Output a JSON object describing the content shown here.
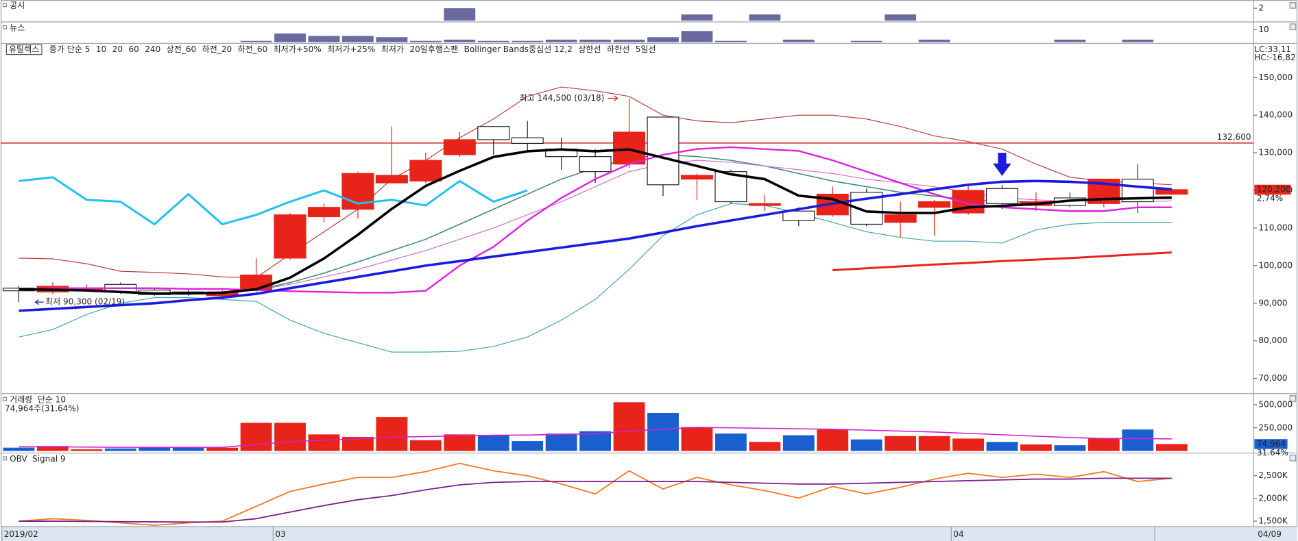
{
  "chart_data": [
    {
      "type": "bar",
      "title": "공시",
      "color": "#6a6aa0",
      "ylim": [
        0,
        2
      ],
      "yticks": [
        2
      ],
      "values": [
        0,
        0,
        0,
        0,
        0,
        0,
        0,
        0,
        0,
        0,
        0,
        0,
        0,
        2,
        0,
        0,
        0,
        0,
        0,
        0,
        1,
        0,
        1,
        0,
        0,
        0,
        1,
        0,
        0,
        0,
        0,
        0,
        0,
        0,
        0
      ]
    },
    {
      "type": "bar",
      "title": "뉴스",
      "color": "#6a6aa0",
      "ylim": [
        0,
        10
      ],
      "yticks": [
        10
      ],
      "values": [
        0,
        0,
        0,
        0,
        0,
        0,
        0,
        1,
        7,
        5,
        5,
        4,
        1,
        2,
        1,
        1,
        2,
        2,
        2,
        4,
        9,
        1,
        0,
        2,
        0,
        1,
        0,
        2,
        0,
        0,
        0,
        2,
        0,
        2,
        0
      ]
    },
    {
      "type": "candlestick",
      "stock": "유틸렉스",
      "categories": [
        "2019/02",
        null,
        null,
        null,
        null,
        null,
        null,
        null,
        "03",
        null,
        null,
        null,
        null,
        null,
        null,
        null,
        null,
        null,
        null,
        null,
        null,
        null,
        null,
        null,
        null,
        null,
        null,
        null,
        "04",
        null,
        null,
        null,
        null,
        null,
        "04/09"
      ],
      "open": [
        94000,
        93000,
        93500,
        95000,
        93500,
        93000,
        92000,
        93500,
        102000,
        113000,
        115000,
        122000,
        122500,
        129500,
        137000,
        134000,
        131000,
        129000,
        127000,
        139500,
        123000,
        125000,
        116000,
        114500,
        113500,
        119500,
        111500,
        115500,
        114000,
        120500,
        116000,
        118000,
        116500,
        123000,
        119000
      ],
      "high": [
        94500,
        95500,
        95000,
        95500,
        94000,
        93500,
        93500,
        102000,
        114000,
        116500,
        125000,
        137000,
        130000,
        135500,
        137000,
        138500,
        134000,
        131000,
        144500,
        139500,
        124500,
        125500,
        119000,
        115500,
        121000,
        120500,
        117000,
        117500,
        121500,
        121500,
        119500,
        119500,
        123000,
        127000,
        120500
      ],
      "low": [
        90300,
        92500,
        93000,
        92500,
        92000,
        92000,
        91000,
        93000,
        101500,
        111500,
        112500,
        122000,
        122000,
        129000,
        129500,
        130500,
        125500,
        122000,
        126000,
        118500,
        117500,
        116500,
        114500,
        110500,
        113000,
        110500,
        107500,
        108000,
        113500,
        115000,
        114500,
        115500,
        115500,
        114000,
        118800
      ],
      "close": [
        93300,
        94500,
        94000,
        93000,
        92300,
        92500,
        93000,
        97500,
        113500,
        115500,
        124500,
        124000,
        128000,
        133500,
        133500,
        132500,
        129000,
        125000,
        135500,
        121500,
        124000,
        117000,
        116500,
        112000,
        119000,
        111000,
        113500,
        117000,
        120000,
        116500,
        117000,
        116000,
        123000,
        117000,
        120200
      ],
      "up_color": "#e8231a",
      "down_color": "#ffffff",
      "ylim": [
        66300,
        159000
      ],
      "yticks": [
        {
          "value": 150000,
          "label": "150,000"
        },
        {
          "value": 140000,
          "label": "140,000"
        },
        {
          "value": 130000,
          "label": "130,000"
        },
        {
          "value": 120000,
          "label": "120,000"
        },
        {
          "value": 110000,
          "label": "110,000"
        },
        {
          "value": 100000,
          "label": "100,000"
        },
        {
          "value": 90000,
          "label": "90,000"
        },
        {
          "value": 80000,
          "label": "80,000"
        },
        {
          "value": 70000,
          "label": "70,000"
        }
      ],
      "legend": [
        {
          "name": "종가 단순 5",
          "color": "#000000"
        },
        {
          "name": "10",
          "color": "#1f9c9c"
        },
        {
          "name": "20",
          "color": "#1a1ae0"
        },
        {
          "name": "60",
          "color": "#a0302a"
        },
        {
          "name": "240",
          "color": "#808080"
        },
        {
          "name": "상전_60",
          "color": "#c04040"
        },
        {
          "name": "하전_20",
          "color": "#1a1a8a"
        },
        {
          "name": "하전_60",
          "color": "#b03020"
        },
        {
          "name": "최저가+50%",
          "color": "#e02020"
        },
        {
          "name": "최저가+25%",
          "color": "#30c0c0"
        },
        {
          "name": "최저가",
          "color": "#000000"
        },
        {
          "name": "20일후행스팬",
          "color": "#20b0e0"
        },
        {
          "name": "Bollinger Bands중심선 12,2",
          "color": "#c040c0"
        },
        {
          "name": "상한선",
          "color": "#c03030"
        },
        {
          "name": "하한선",
          "color": "#309090"
        },
        {
          "name": "5일선",
          "color": "#d020d0"
        }
      ],
      "lines": [
        {
          "color": "#b5403a",
          "width": 1,
          "values": [
            102000,
            101800,
            100500,
            98500,
            98200,
            97800,
            97000,
            96800,
            103000,
            109000,
            115000,
            123000,
            128000,
            134000,
            139000,
            145000,
            147500,
            146500,
            145000,
            140000,
            138500,
            138000,
            139000,
            140000,
            140000,
            139000,
            137000,
            134500,
            133000,
            131000,
            127000,
            123500,
            122500,
            122000,
            121500
          ]
        },
        {
          "color": "#3aa6b0",
          "width": 1,
          "values": [
            81000,
            83000,
            87000,
            90000,
            91500,
            91500,
            91000,
            90500,
            85500,
            82000,
            79500,
            77000,
            77000,
            77200,
            78500,
            81000,
            85500,
            91000,
            99000,
            108000,
            113500,
            116500,
            116000,
            114000,
            111500,
            109000,
            107500,
            106500,
            106500,
            106000,
            109500,
            111000,
            111500,
            111500,
            111500
          ]
        },
        {
          "color": "#3c8c6e",
          "width": 1.3,
          "values": [
            null,
            null,
            null,
            null,
            null,
            null,
            null,
            93500,
            95500,
            98000,
            101000,
            104000,
            107000,
            111000,
            115000,
            119000,
            123000,
            126000,
            128500,
            129500,
            129000,
            128000,
            126500,
            124500,
            122500,
            121000,
            119500,
            118500,
            117500,
            117000,
            116800,
            117200,
            117500,
            117800,
            117800
          ]
        },
        {
          "color": "#d070d0",
          "width": 1,
          "values": [
            null,
            null,
            null,
            null,
            null,
            null,
            null,
            93500,
            95000,
            97000,
            99000,
            101500,
            104000,
            107000,
            110000,
            113500,
            117000,
            121000,
            125000,
            127000,
            128000,
            127500,
            126500,
            125500,
            124500,
            123000,
            122000,
            121000,
            119500,
            118000,
            117500,
            117000,
            116800,
            117000,
            117200
          ]
        },
        {
          "color": "#e020e0",
          "width": 2,
          "values": [
            93500,
            94000,
            94000,
            94000,
            94000,
            93800,
            93800,
            93500,
            93200,
            93000,
            92800,
            92800,
            93300,
            100000,
            105000,
            112000,
            118000,
            123000,
            127000,
            129500,
            131000,
            131500,
            131000,
            130500,
            128000,
            125000,
            122000,
            119000,
            116500,
            115500,
            115000,
            114500,
            114500,
            115500,
            115500
          ]
        },
        {
          "color": "#20c0f0",
          "width": 2.5,
          "values": [
            122500,
            123500,
            117500,
            117000,
            111000,
            119000,
            111000,
            113500,
            117000,
            120000,
            116500,
            117500,
            116000,
            122500,
            117000,
            120000,
            null,
            null,
            null,
            null,
            null,
            null,
            null,
            null,
            null,
            null,
            null,
            null,
            null,
            null,
            null,
            null,
            null,
            null,
            null
          ]
        },
        {
          "color": "#1a1ae0",
          "width": 3,
          "values": [
            88000,
            88500,
            89000,
            89500,
            90000,
            90800,
            91500,
            92500,
            94000,
            95500,
            97000,
            98500,
            100000,
            101200,
            102400,
            103600,
            104800,
            106000,
            107200,
            108800,
            110500,
            112000,
            113500,
            115000,
            116500,
            117800,
            119000,
            120300,
            121500,
            122300,
            122500,
            122300,
            121800,
            121000,
            120300
          ]
        },
        {
          "color": "#000000",
          "width": 3,
          "values": [
            93700,
            93600,
            93400,
            93000,
            92600,
            92600,
            92800,
            93700,
            96800,
            101900,
            108200,
            115100,
            121200,
            125200,
            128900,
            130400,
            130900,
            130400,
            130900,
            128700,
            126500,
            124300,
            123000,
            118600,
            117700,
            114400,
            114000,
            114000,
            115500,
            115900,
            116400,
            117300,
            117700,
            117900,
            118100
          ]
        },
        {
          "color": "#e8231a",
          "width": 2.5,
          "values": [
            null,
            null,
            null,
            null,
            null,
            null,
            null,
            null,
            null,
            null,
            null,
            null,
            null,
            null,
            null,
            null,
            null,
            null,
            null,
            null,
            null,
            null,
            null,
            null,
            98800,
            99300,
            99800,
            100300,
            100700,
            101200,
            101600,
            102000,
            102500,
            103000,
            103500
          ]
        }
      ],
      "hline": {
        "value": 132600,
        "label": "132,600",
        "color": "#d0202a"
      },
      "high_label": "최고 144,500 (03/18)",
      "low_label": "최저 90,300 (02/19)",
      "indicators": [
        {
          "text": "LC:33,11",
          "color": "#d0202a"
        },
        {
          "text": "HC:-16,82",
          "color": "#222222"
        }
      ],
      "last_price_label": "120,200",
      "last_change": "2.74%"
    },
    {
      "type": "bar",
      "title": "거래량",
      "subtitle": "단순 10",
      "summary": "74,964주(31.64%)",
      "ylim": [
        0,
        616000
      ],
      "yticks": [
        {
          "value": 500000,
          "label": "500,000"
        },
        {
          "value": 250000,
          "label": "250,000"
        }
      ],
      "up_color": "#e8231a",
      "down_color": "#1a5fd0",
      "ma_color": "#d020d0",
      "values": [
        36000,
        54000,
        18000,
        27000,
        36000,
        36000,
        36000,
        304000,
        304000,
        179000,
        152000,
        366000,
        116000,
        179000,
        170000,
        107000,
        188000,
        214000,
        527000,
        411000,
        259000,
        188000,
        98000,
        170000,
        232000,
        125000,
        161000,
        161000,
        134000,
        98000,
        71000,
        62000,
        134000,
        232000,
        74964
      ],
      "ma_values": [
        45000,
        45000,
        42000,
        40000,
        40000,
        40000,
        40000,
        70000,
        100000,
        115000,
        130000,
        150000,
        155000,
        165000,
        170000,
        172000,
        180000,
        185000,
        215000,
        235000,
        255000,
        250000,
        245000,
        240000,
        235000,
        225000,
        215000,
        205000,
        190000,
        175000,
        160000,
        145000,
        135000,
        135000,
        130000
      ],
      "last_label": "74,964",
      "last_pct": "31.64%"
    },
    {
      "type": "line",
      "ylim": [
        1391000,
        2973000
      ],
      "yticks": [
        {
          "value": 2500000,
          "label": "2,500K"
        },
        {
          "value": 2000000,
          "label": "2,000K"
        },
        {
          "value": 1500000,
          "label": "1,500K"
        }
      ],
      "series": [
        {
          "name": "OBV",
          "color": "#f07820",
          "values": [
            1500000,
            1555000,
            1518000,
            1464000,
            1409000,
            1464000,
            1500000,
            1827000,
            2155000,
            2318000,
            2464000,
            2464000,
            2591000,
            2773000,
            2609000,
            2500000,
            2318000,
            2100000,
            2609000,
            2209000,
            2464000,
            2300000,
            2173000,
            2009000,
            2264000,
            2100000,
            2245000,
            2427000,
            2555000,
            2464000,
            2536000,
            2464000,
            2591000,
            2373000,
            2445000
          ]
        },
        {
          "name": "Signal 9",
          "color": "#7a1f8a",
          "values": [
            1500000,
            1500000,
            1495000,
            1490000,
            1485000,
            1482000,
            1482000,
            1555000,
            1700000,
            1845000,
            1973000,
            2064000,
            2191000,
            2300000,
            2355000,
            2373000,
            2373000,
            2373000,
            2373000,
            2373000,
            2373000,
            2355000,
            2336000,
            2318000,
            2318000,
            2336000,
            2355000,
            2373000,
            2391000,
            2409000,
            2427000,
            2427000,
            2445000,
            2445000,
            2445000
          ]
        }
      ]
    }
  ]
}
